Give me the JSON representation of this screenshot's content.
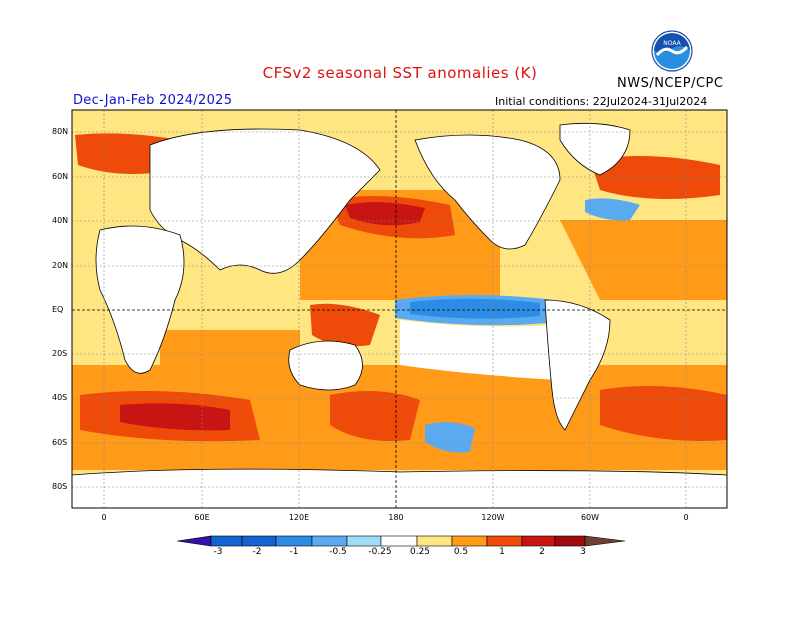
{
  "title": "CFSv2 seasonal SST anomalies (K)",
  "season": "Dec-Jan-Feb 2024/2025",
  "initial_conditions": "Initial conditions: 22Jul2024-31Jul2024",
  "agency": "NWS/NCEP/CPC",
  "logo_text": "NOAA",
  "colors": {
    "title": "#e01010",
    "season": "#1010d0",
    "neg3": "#3311aa",
    "neg2": "#1463d2",
    "neg1": "#2d8ce6",
    "neg05": "#5aaaf0",
    "neg025": "#a0dcfa",
    "zero": "#ffffff",
    "pos025": "#ffe682",
    "pos05": "#ff9b19",
    "pos1": "#ee4b0a",
    "pos2": "#c81412",
    "pos3": "#a00a0a",
    "pos3plus": "#6e4030",
    "land": "#ffffff",
    "coast": "#000000"
  },
  "lat_labels": [
    "80N",
    "60N",
    "40N",
    "20N",
    "EQ",
    "20S",
    "40S",
    "60S",
    "80S"
  ],
  "lon_labels": [
    "0",
    "60E",
    "120E",
    "180",
    "120W",
    "60W",
    "0"
  ],
  "colorbar_labels": [
    "-3",
    "-2",
    "-1",
    "-0.5",
    "-0.25",
    "0.25",
    "0.5",
    "1",
    "2",
    "3"
  ]
}
